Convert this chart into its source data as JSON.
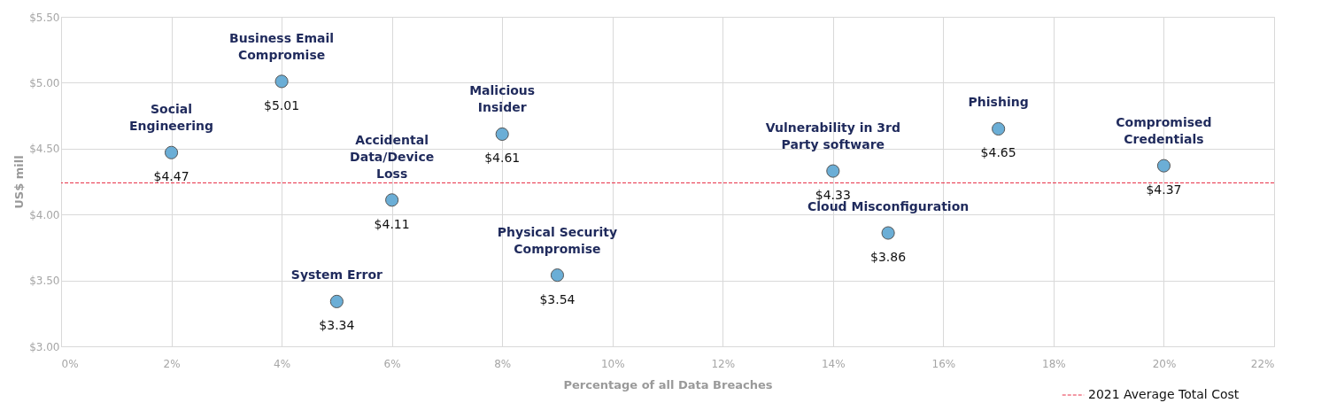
{
  "chart_data": {
    "type": "scatter",
    "xlabel": "Percentage of all Data Breaches",
    "ylabel": "US$ mill",
    "x": [
      2,
      4,
      5,
      6,
      8,
      9,
      14,
      15,
      17,
      20
    ],
    "series": [
      {
        "color": "#6baed6",
        "values": [
          4.47,
          5.01,
          3.34,
          4.11,
          4.61,
          3.54,
          4.33,
          3.86,
          4.65,
          4.37
        ],
        "value_labels": [
          "$4.47",
          "$5.01",
          "$3.34",
          "$4.11",
          "$4.61",
          "$3.54",
          "$4.33",
          "$3.86",
          "$4.65",
          "$4.37"
        ]
      }
    ],
    "annotations": [
      {
        "text": "Social\nEngineering",
        "x": 2,
        "y": 4.47
      },
      {
        "text": "Business Email\nCompromise",
        "x": 4,
        "y": 5.01
      },
      {
        "text": "System Error",
        "x": 5,
        "y": 3.34
      },
      {
        "text": "Accidental\nData/Device\nLoss",
        "x": 6,
        "y": 4.11
      },
      {
        "text": "Malicious\nInsider",
        "x": 8,
        "y": 4.61
      },
      {
        "text": "Physical Security\nCompromise",
        "x": 9,
        "y": 3.54
      },
      {
        "text": "Vulnerability in 3rd\nParty software",
        "x": 14,
        "y": 4.33
      },
      {
        "text": "Cloud Misconfiguration",
        "x": 15,
        "y": 3.86
      },
      {
        "text": "Phishing",
        "x": 17,
        "y": 4.65
      },
      {
        "text": "Compromised\nCredentials",
        "x": 20,
        "y": 4.37
      }
    ],
    "ref_lines": [
      {
        "axis": "y",
        "value": 4.24,
        "label": "2021 Average Total Cost",
        "color": "#e8334a",
        "line_style": "dashed"
      }
    ],
    "xlim": [
      0,
      22
    ],
    "ylim": [
      3.0,
      5.5
    ],
    "xticks": [
      {
        "value": 0,
        "label": "0%"
      },
      {
        "value": 2,
        "label": "2%"
      },
      {
        "value": 4,
        "label": "4%"
      },
      {
        "value": 6,
        "label": "6%"
      },
      {
        "value": 8,
        "label": "8%"
      },
      {
        "value": 10,
        "label": "10%"
      },
      {
        "value": 12,
        "label": "12%"
      },
      {
        "value": 14,
        "label": "14%"
      },
      {
        "value": 16,
        "label": "16%"
      },
      {
        "value": 18,
        "label": "18%"
      },
      {
        "value": 20,
        "label": "20%"
      },
      {
        "value": 22,
        "label": "22%"
      }
    ],
    "yticks": [
      {
        "value": 3.0,
        "label": "$3.00"
      },
      {
        "value": 3.5,
        "label": "$3.50"
      },
      {
        "value": 4.0,
        "label": "$4.00"
      },
      {
        "value": 4.5,
        "label": "$4.50"
      },
      {
        "value": 5.0,
        "label": "$5.00"
      },
      {
        "value": 5.5,
        "label": "$5.50"
      }
    ],
    "grid": true,
    "legend": "bottom right",
    "marker": "circle"
  }
}
